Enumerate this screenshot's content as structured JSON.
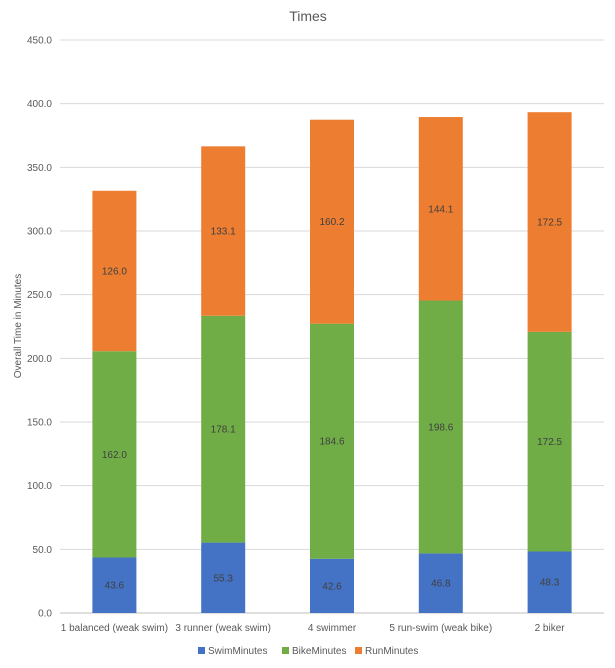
{
  "chart_data": {
    "type": "bar",
    "stacked": true,
    "title": "Times",
    "xlabel": "",
    "ylabel": "Overall Time in Minutes",
    "ylim": [
      0,
      450
    ],
    "ytick_step": 50,
    "ytick_labels": [
      "0.0",
      "50.0",
      "100.0",
      "150.0",
      "200.0",
      "250.0",
      "300.0",
      "350.0",
      "400.0",
      "450.0"
    ],
    "grid": true,
    "legend_position": "bottom",
    "categories": [
      "1 balanced (weak swim)",
      "3 runner (weak swim)",
      "4 swimmer",
      "5 run-swim (weak bike)",
      "2 biker"
    ],
    "series": [
      {
        "name": "SwimMinutes",
        "color": "#4472C4",
        "values": [
          43.6,
          55.3,
          42.6,
          46.8,
          48.3
        ],
        "labels": [
          "43.6",
          "55.3",
          "42.6",
          "46.8",
          "48.3"
        ]
      },
      {
        "name": "BikeMinutes",
        "color": "#70AD47",
        "values": [
          162.0,
          178.1,
          184.6,
          198.6,
          172.5
        ],
        "labels": [
          "162.0",
          "178.1",
          "184.6",
          "198.6",
          "172.5"
        ]
      },
      {
        "name": "RunMinutes",
        "color": "#ED7D31",
        "values": [
          126.0,
          133.1,
          160.2,
          144.1,
          172.5
        ],
        "labels": [
          "126.0",
          "133.1",
          "160.2",
          "144.1",
          "172.5"
        ]
      }
    ]
  }
}
